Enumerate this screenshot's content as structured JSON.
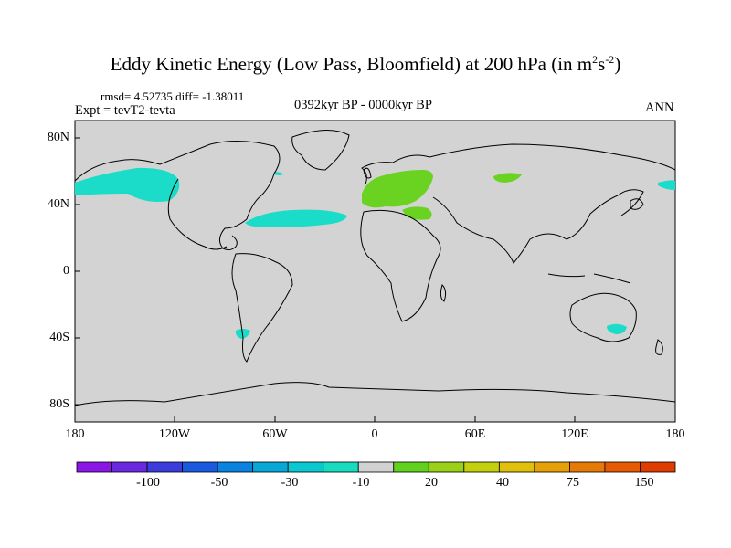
{
  "title": {
    "text": "Eddy Kinetic Energy (Low Pass, Bloomfield) at 200 hPa (in m",
    "sup1": "2",
    "mid": "s",
    "sup2": "-2",
    "end": ")"
  },
  "stats": "rmsd= 4.52735 diff= -1.38011",
  "experiment": "Expt = tevT2-tevta",
  "period": "0392kyr BP - 0000kyr BP",
  "season": "ANN",
  "colors": {
    "ocean_land": "#d3d3d3",
    "neg_cyan": "#1adcc8",
    "pos_green": "#6ad221"
  },
  "axes": {
    "y_ticks": [
      "80N",
      "40N",
      "0",
      "40S",
      "80S"
    ],
    "x_ticks": [
      "180",
      "120W",
      "60W",
      "0",
      "60E",
      "120E",
      "180"
    ]
  },
  "colorbar": {
    "colors": [
      "#8c16e6",
      "#6a28e0",
      "#3c3cdc",
      "#1a5ae0",
      "#0a82e0",
      "#08a8d6",
      "#0ac8d0",
      "#18dcc0",
      "#d2d2d2",
      "#60d21e",
      "#9ad018",
      "#c2d00e",
      "#e0c00a",
      "#e6a008",
      "#e67a06",
      "#e65a04",
      "#e03c02"
    ],
    "labels": [
      "-100",
      "-50",
      "-30",
      "-10",
      "20",
      "40",
      "75",
      "150"
    ]
  }
}
